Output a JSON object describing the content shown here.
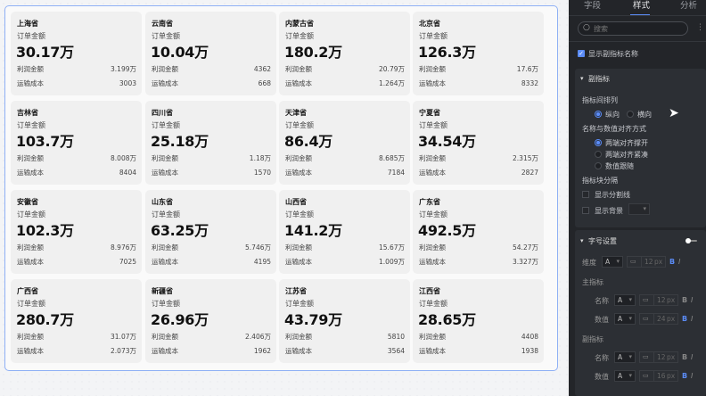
{
  "cards": [
    {
      "name": "上海省",
      "label": "订单金额",
      "value": "30.17万",
      "profit_label": "利润金额",
      "profit": "3.199万",
      "cost_label": "运输成本",
      "cost": "3003"
    },
    {
      "name": "云南省",
      "label": "订单金额",
      "value": "10.04万",
      "profit_label": "利润金额",
      "profit": "4362",
      "cost_label": "运输成本",
      "cost": "668"
    },
    {
      "name": "内蒙古省",
      "label": "订单金额",
      "value": "180.2万",
      "profit_label": "利润金额",
      "profit": "20.79万",
      "cost_label": "运输成本",
      "cost": "1.264万"
    },
    {
      "name": "北京省",
      "label": "订单金额",
      "value": "126.3万",
      "profit_label": "利润金额",
      "profit": "17.6万",
      "cost_label": "运输成本",
      "cost": "8332"
    },
    {
      "name": "吉林省",
      "label": "订单金额",
      "value": "103.7万",
      "profit_label": "利润金额",
      "profit": "8.008万",
      "cost_label": "运输成本",
      "cost": "8404"
    },
    {
      "name": "四川省",
      "label": "订单金额",
      "value": "25.18万",
      "profit_label": "利润金额",
      "profit": "1.18万",
      "cost_label": "运输成本",
      "cost": "1570"
    },
    {
      "name": "天津省",
      "label": "订单金额",
      "value": "86.4万",
      "profit_label": "利润金额",
      "profit": "8.685万",
      "cost_label": "运输成本",
      "cost": "7184"
    },
    {
      "name": "宁夏省",
      "label": "订单金额",
      "value": "34.54万",
      "profit_label": "利润金额",
      "profit": "2.315万",
      "cost_label": "运输成本",
      "cost": "2827"
    },
    {
      "name": "安徽省",
      "label": "订单金额",
      "value": "102.3万",
      "profit_label": "利润金额",
      "profit": "8.976万",
      "cost_label": "运输成本",
      "cost": "7025"
    },
    {
      "name": "山东省",
      "label": "订单金额",
      "value": "63.25万",
      "profit_label": "利润金额",
      "profit": "5.746万",
      "cost_label": "运输成本",
      "cost": "4195"
    },
    {
      "name": "山西省",
      "label": "订单金额",
      "value": "141.2万",
      "profit_label": "利润金额",
      "profit": "15.67万",
      "cost_label": "运输成本",
      "cost": "1.009万"
    },
    {
      "name": "广东省",
      "label": "订单金额",
      "value": "492.5万",
      "profit_label": "利润金额",
      "profit": "54.27万",
      "cost_label": "运输成本",
      "cost": "3.327万"
    },
    {
      "name": "广西省",
      "label": "订单金额",
      "value": "280.7万",
      "profit_label": "利润金额",
      "profit": "31.07万",
      "cost_label": "运输成本",
      "cost": "2.073万"
    },
    {
      "name": "新疆省",
      "label": "订单金额",
      "value": "26.96万",
      "profit_label": "利润金额",
      "profit": "2.406万",
      "cost_label": "运输成本",
      "cost": "1962"
    },
    {
      "name": "江苏省",
      "label": "订单金额",
      "value": "43.79万",
      "profit_label": "利润金额",
      "profit": "5810",
      "cost_label": "运输成本",
      "cost": "3564"
    },
    {
      "name": "江西省",
      "label": "订单金额",
      "value": "28.65万",
      "profit_label": "利润金额",
      "profit": "4408",
      "cost_label": "运输成本",
      "cost": "1938"
    }
  ],
  "panel": {
    "tabs": [
      "字段",
      "样式",
      "分析"
    ],
    "active_tab": "样式",
    "search_placeholder": "搜索",
    "show_sub_name": "显示副指标名称",
    "sub_section": {
      "title": "副指标",
      "arrange_label": "指标间排列",
      "arrange_options": [
        "纵向",
        "横向"
      ],
      "arrange_selected": "纵向",
      "align_label": "名称与数值对齐方式",
      "align_options": [
        "两端对齐撑开",
        "两端对齐紧凑",
        "数值跟随"
      ],
      "align_selected": "两端对齐撑开",
      "divider_label": "指标块分隔",
      "show_divider": "显示分割线",
      "show_bg": "显示背景"
    },
    "font_section": {
      "title": "字号设置",
      "dimension_label": "维度",
      "dimension_size": "12",
      "main_label": "主指标",
      "sub_label": "副指标",
      "name_label": "名称",
      "value_label": "数值",
      "main_name_size": "12",
      "main_value_size": "24",
      "sub_name_size": "12",
      "sub_value_size": "16",
      "font_glyph": "A",
      "unit": "px",
      "bold": "B",
      "italic": "I"
    },
    "accent": "#5b8cf7"
  }
}
